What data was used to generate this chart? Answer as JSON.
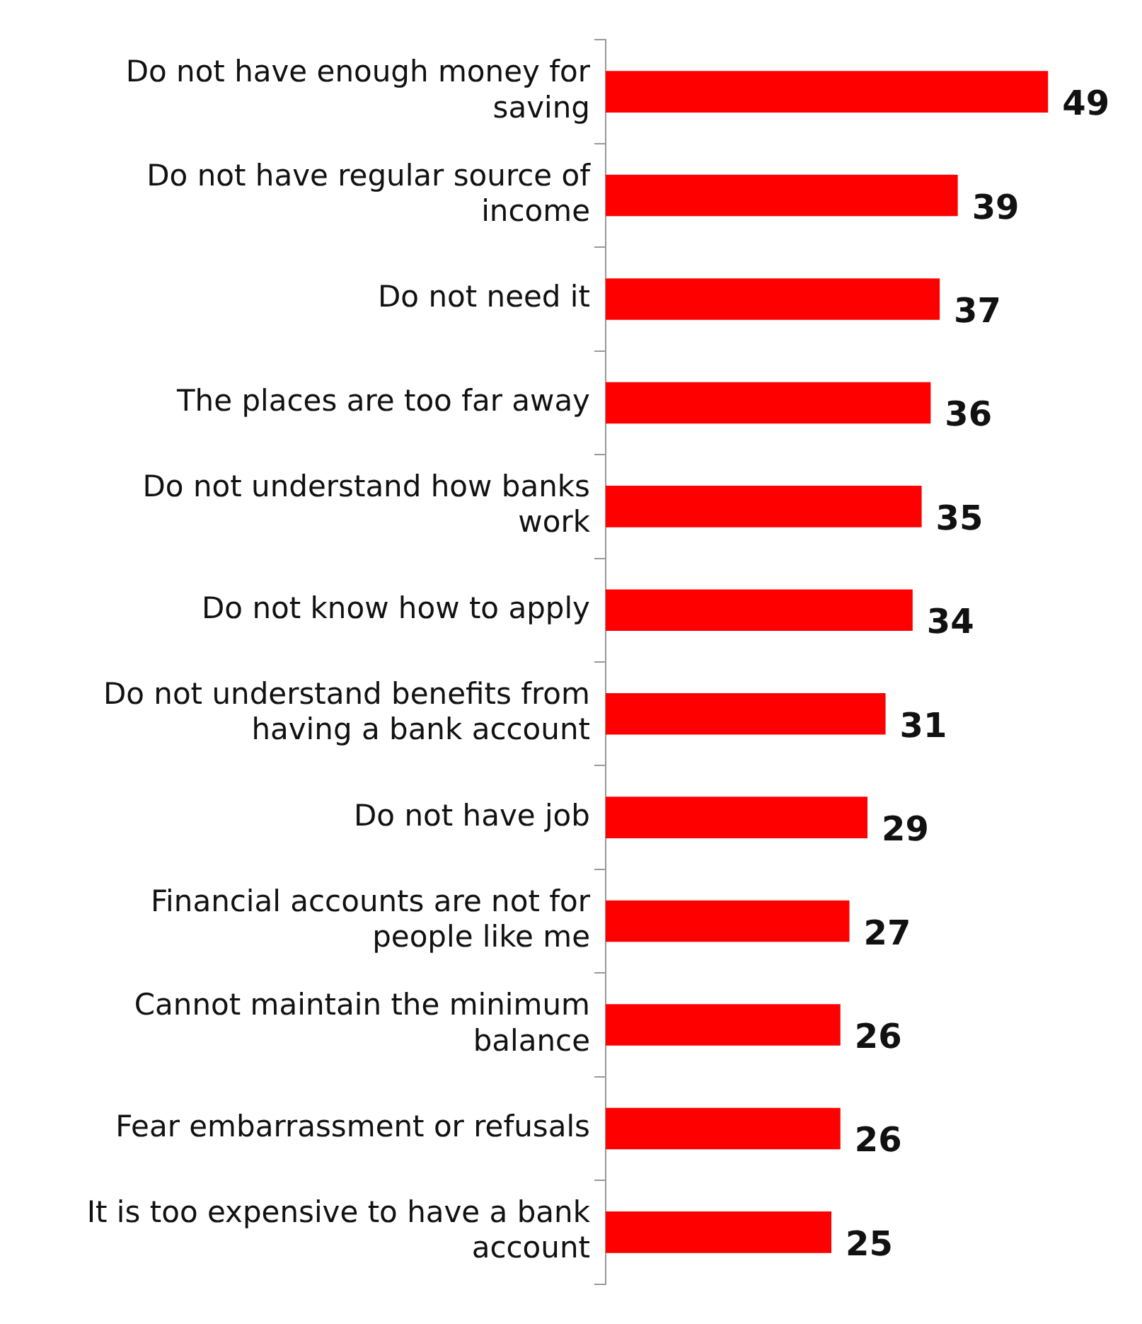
{
  "chart_data": {
    "type": "bar",
    "orientation": "horizontal",
    "data_labels": true,
    "legend": false,
    "tick_labels": "y",
    "categories": [
      "Do not have enough money for saving",
      "Do not have regular source of income",
      "Do not need it",
      "The places are too far away",
      "Do not understand how banks work",
      "Do not know how to apply",
      "Do not understand benefits from having a bank account",
      "Do not have job",
      "Financial accounts are not for people like me",
      "Cannot maintain the minimum balance",
      "Fear embarrassment or refusals",
      "It is too expensive to have a bank account"
    ],
    "values": [
      49,
      39,
      37,
      36,
      35,
      34,
      31,
      29,
      27,
      26,
      26,
      25
    ],
    "color": "#ff0000"
  }
}
